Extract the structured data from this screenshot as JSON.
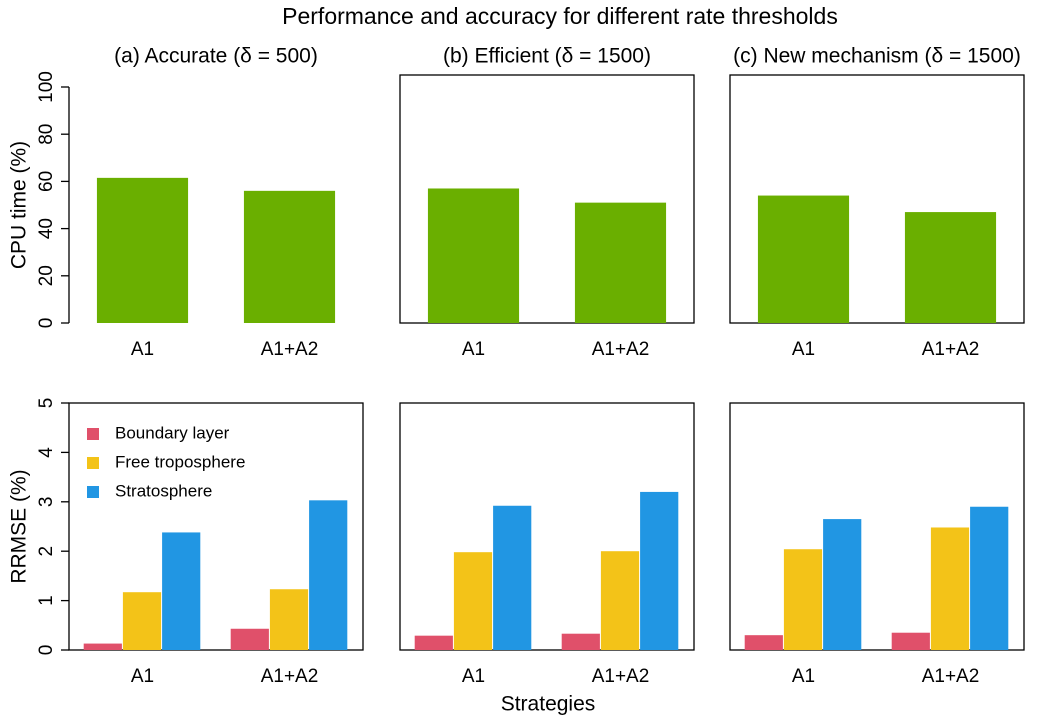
{
  "title": "Performance and accuracy for different rate thresholds",
  "xlabel": "Strategies",
  "chart_data": [
    {
      "type": "bar",
      "title": "(a) Accurate (δ = 500)",
      "ylabel": "CPU time (%)",
      "frame": false,
      "categories": [
        "A1",
        "A1+A2"
      ],
      "series": [
        {
          "values": [
            61.5,
            56
          ],
          "color": "#6aaf00"
        }
      ],
      "ylim": [
        0,
        100
      ],
      "yticks": [
        0,
        20,
        40,
        60,
        80,
        100
      ]
    },
    {
      "type": "bar",
      "title": "(b) Efficient (δ = 1500)",
      "categories": [
        "A1",
        "A1+A2"
      ],
      "series": [
        {
          "values": [
            57,
            51
          ],
          "color": "#6aaf00"
        }
      ],
      "ylim": [
        0,
        100
      ]
    },
    {
      "type": "bar",
      "title": "(c) New mechanism (δ = 1500)",
      "categories": [
        "A1",
        "A1+A2"
      ],
      "series": [
        {
          "values": [
            54,
            47
          ],
          "color": "#6aaf00"
        }
      ],
      "ylim": [
        0,
        100
      ]
    },
    {
      "type": "bar",
      "ylabel": "RRMSE (%)",
      "legend": "upper left",
      "categories": [
        "A1",
        "A1+A2"
      ],
      "series": [
        {
          "name": "Boundary layer",
          "color": "#e0506a",
          "values": [
            0.13,
            0.43
          ]
        },
        {
          "name": "Free troposphere",
          "color": "#f3c318",
          "values": [
            1.17,
            1.23
          ]
        },
        {
          "name": "Stratosphere",
          "color": "#2196e3",
          "values": [
            2.38,
            3.03
          ]
        }
      ],
      "ylim": [
        0,
        5
      ],
      "yticks": [
        0,
        1,
        2,
        3,
        4,
        5
      ]
    },
    {
      "type": "bar",
      "categories": [
        "A1",
        "A1+A2"
      ],
      "series": [
        {
          "color": "#e0506a",
          "values": [
            0.29,
            0.33
          ]
        },
        {
          "color": "#f3c318",
          "values": [
            1.98,
            2.0
          ]
        },
        {
          "color": "#2196e3",
          "values": [
            2.92,
            3.2
          ]
        }
      ],
      "ylim": [
        0,
        5
      ]
    },
    {
      "type": "bar",
      "categories": [
        "A1",
        "A1+A2"
      ],
      "series": [
        {
          "color": "#e0506a",
          "values": [
            0.3,
            0.35
          ]
        },
        {
          "color": "#f3c318",
          "values": [
            2.04,
            2.48
          ]
        },
        {
          "color": "#2196e3",
          "values": [
            2.65,
            2.9
          ]
        }
      ],
      "ylim": [
        0,
        5
      ]
    }
  ]
}
